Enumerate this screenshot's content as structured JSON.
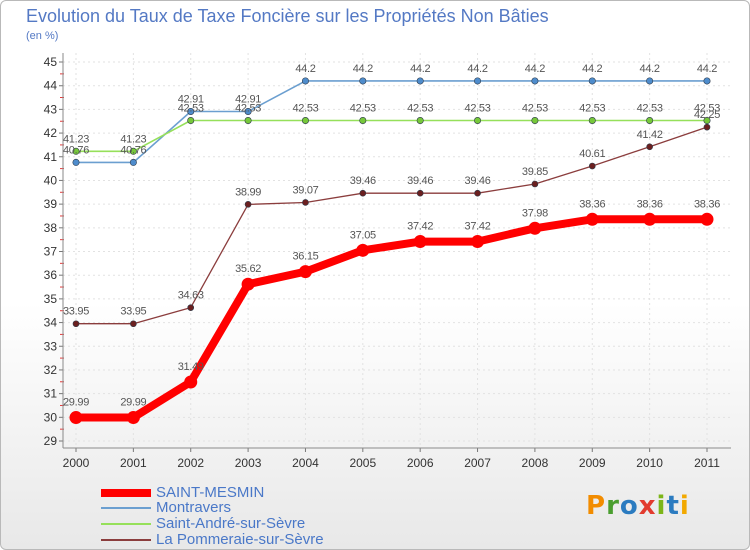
{
  "chart_data": {
    "type": "line",
    "title": "Evolution du Taux de Taxe Foncière sur les Propriétés Non Bâties",
    "subtitle": "(en %)",
    "xlabel": "",
    "ylabel": "",
    "categories": [
      "2000",
      "2001",
      "2002",
      "2003",
      "2004",
      "2005",
      "2006",
      "2007",
      "2008",
      "2009",
      "2010",
      "2011"
    ],
    "ylim": [
      29,
      45
    ],
    "yticks": [
      29,
      30,
      31,
      32,
      33,
      34,
      35,
      36,
      37,
      38,
      39,
      40,
      41,
      42,
      43,
      44,
      45
    ],
    "grid": true,
    "legend": "bottom-left",
    "series": [
      {
        "name": "SAINT-MESMIN",
        "color": "#ff0000",
        "marker_color": "#ff0000",
        "values": [
          29.99,
          29.99,
          31.49,
          35.62,
          36.15,
          37.05,
          37.42,
          37.42,
          37.98,
          38.36,
          38.36,
          38.36
        ]
      },
      {
        "name": "Montravers",
        "color": "#6b9fd0",
        "marker_color": "#4e8ccc",
        "values": [
          40.76,
          40.76,
          42.91,
          42.91,
          44.2,
          44.2,
          44.2,
          44.2,
          44.2,
          44.2,
          44.2,
          44.2
        ]
      },
      {
        "name": "Saint-André-sur-Sèvre",
        "color": "#96e05a",
        "marker_color": "#76c83a",
        "values": [
          41.23,
          41.23,
          42.53,
          42.53,
          42.53,
          42.53,
          42.53,
          42.53,
          42.53,
          42.53,
          42.53,
          42.53
        ]
      },
      {
        "name": "La Pommeraie-sur-Sèvre",
        "color": "#8b3d3d",
        "marker_color": "#6b1f1f",
        "values": [
          33.95,
          33.95,
          34.63,
          38.99,
          39.07,
          39.46,
          39.46,
          39.46,
          39.85,
          40.61,
          41.42,
          42.25
        ]
      }
    ]
  },
  "logo": {
    "text": "Proxiti",
    "colors": [
      "#f28c00",
      "#4a9e2f",
      "#2b7bc0",
      "#e23b2e",
      "#7cb518",
      "#2b7bc0",
      "#f2a900"
    ]
  }
}
